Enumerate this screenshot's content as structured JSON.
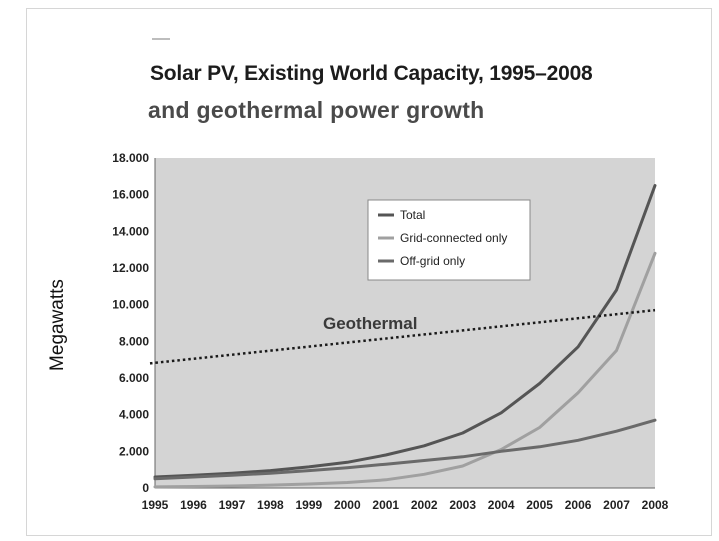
{
  "title": "Solar PV, Existing World Capacity, 1995–2008",
  "subtitle": "and geothermal power growth",
  "chart_data": {
    "type": "line",
    "ylabel": "Megawatts",
    "xlabel": "",
    "ylim": [
      0,
      18000
    ],
    "y_ticks": [
      "0",
      "2.000",
      "4.000",
      "6.000",
      "8.000",
      "10.000",
      "12.000",
      "14.000",
      "16.000",
      "18.000"
    ],
    "x": [
      "1995",
      "1996",
      "1997",
      "1998",
      "1999",
      "2000",
      "2001",
      "2002",
      "2003",
      "2004",
      "2005",
      "2006",
      "2007",
      "2008"
    ],
    "series": [
      {
        "name": "Total",
        "color": "#555555",
        "values": [
          600,
          700,
          800,
          950,
          1150,
          1400,
          1800,
          2300,
          3000,
          4100,
          5700,
          7700,
          10800,
          16500
        ]
      },
      {
        "name": "Grid-connected only",
        "color": "#a0a0a0",
        "values": [
          60,
          80,
          110,
          160,
          220,
          300,
          450,
          750,
          1200,
          2100,
          3300,
          5200,
          7500,
          12800
        ]
      },
      {
        "name": "Off-grid only",
        "color": "#6a6a6a",
        "values": [
          500,
          600,
          700,
          800,
          950,
          1100,
          1300,
          1500,
          1700,
          2000,
          2250,
          2600,
          3100,
          3700
        ]
      }
    ],
    "annotation": {
      "label": "Geothermal",
      "style": "dotted",
      "x": [
        "1995",
        "2008"
      ],
      "values": [
        6800,
        9700
      ]
    },
    "legend_placement": "top-center",
    "grid": false
  }
}
